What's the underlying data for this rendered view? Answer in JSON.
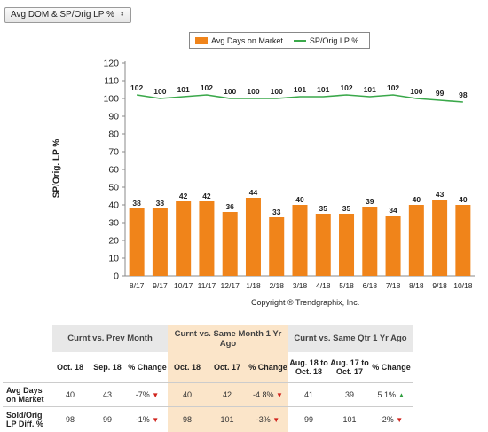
{
  "selector": {
    "label": "Avg DOM & SP/Orig LP %",
    "caret": "⇕"
  },
  "chart_data": {
    "type": "bar",
    "categories": [
      "8/17",
      "9/17",
      "10/17",
      "11/17",
      "12/17",
      "1/18",
      "2/18",
      "3/18",
      "4/18",
      "5/18",
      "6/18",
      "7/18",
      "8/18",
      "9/18",
      "10/18"
    ],
    "series": [
      {
        "name": "Avg Days on Market",
        "kind": "bar",
        "color": "#f0841a",
        "values": [
          38,
          38,
          42,
          42,
          36,
          44,
          33,
          40,
          35,
          35,
          39,
          34,
          40,
          43,
          40
        ]
      },
      {
        "name": "SP/Orig LP %",
        "kind": "line",
        "color": "#3aa84a",
        "values": [
          102,
          100,
          101,
          102,
          100,
          100,
          100,
          101,
          101,
          102,
          101,
          102,
          100,
          99,
          98
        ]
      }
    ],
    "ylabel": "SP/Orig. LP %",
    "ylim": [
      0,
      120
    ],
    "yticks": [
      0,
      10,
      20,
      30,
      40,
      50,
      60,
      70,
      80,
      90,
      100,
      110,
      120
    ],
    "grid": false,
    "legend_position": "top"
  },
  "copyright": "Copyright ® Trendgraphix, Inc.",
  "table": {
    "groups": [
      "Curnt vs. Prev Month",
      "Curnt vs. Same Month 1 Yr Ago",
      "Curnt vs. Same Qtr 1 Yr Ago"
    ],
    "columns": [
      "Oct. 18",
      "Sep. 18",
      "% Change",
      "Oct. 18",
      "Oct. 17",
      "% Change",
      "Aug. 18 to Oct. 18",
      "Aug. 17 to Oct. 17",
      "% Change"
    ],
    "rows": [
      {
        "label": "Avg Days on Market",
        "cells": [
          "40",
          "43",
          "-7%",
          "40",
          "42",
          "-4.8%",
          "41",
          "39",
          "5.1%"
        ],
        "trends": [
          "down",
          "down",
          "up"
        ]
      },
      {
        "label": "Sold/Orig LP Diff. %",
        "cells": [
          "98",
          "99",
          "-1%",
          "98",
          "101",
          "-3%",
          "99",
          "101",
          "-2%"
        ],
        "trends": [
          "down",
          "down",
          "down"
        ]
      }
    ]
  }
}
